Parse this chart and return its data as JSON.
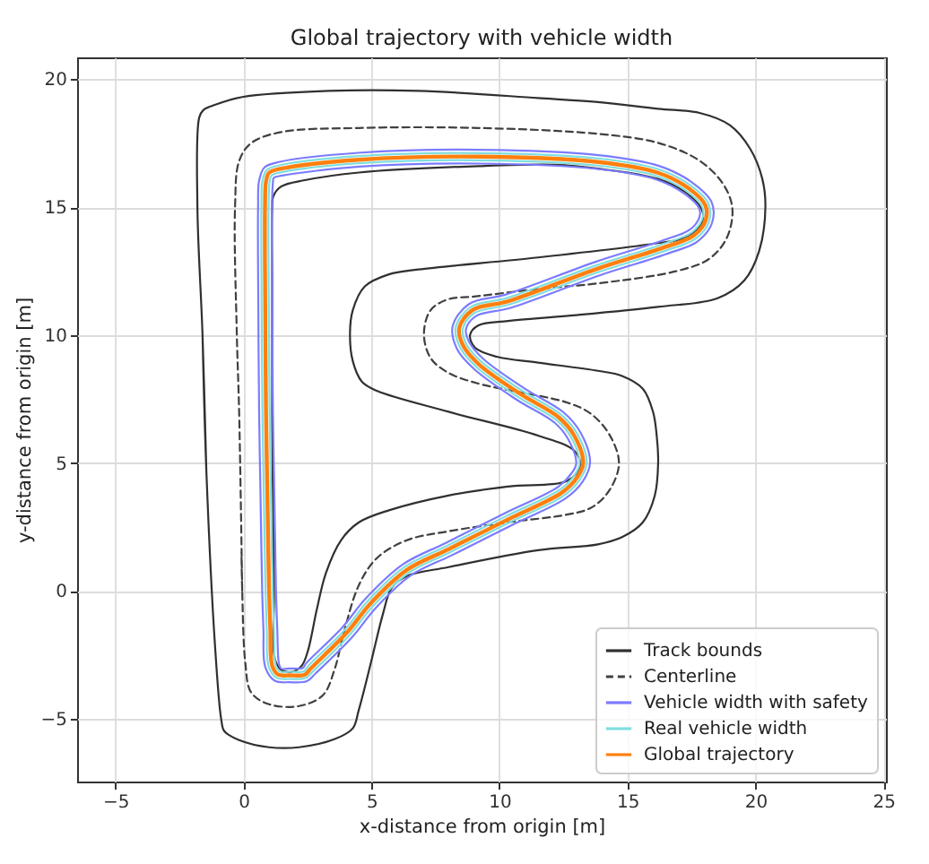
{
  "chart_data": {
    "type": "line",
    "title": "Global trajectory with vehicle width",
    "xlabel": "x-distance from origin [m]",
    "ylabel": "y-distance from origin [m]",
    "xlim": [
      -6.5,
      25.1
    ],
    "ylim": [
      -7.45,
      20.85
    ],
    "xticks": [
      -5,
      0,
      5,
      10,
      15,
      20,
      25
    ],
    "yticks": [
      -5,
      0,
      5,
      10,
      15,
      20
    ],
    "grid": true,
    "legend": "bottom right",
    "series": [
      {
        "name": "Track bounds",
        "color": "#303030",
        "x": [
          -1.45,
          -1.6,
          -1.8,
          -1.73,
          -1.57,
          -1.1,
          -0.05,
          3.34,
          6.84,
          11.51,
          13.85,
          16.19,
          17.82,
          19.0,
          19.8,
          20.27,
          20.39,
          20.15,
          19.57,
          18.52,
          16.19,
          12.68,
          10.34,
          9.18,
          8.85,
          9.05,
          9.9,
          11.51,
          13.85,
          14.79,
          15.6,
          16.0,
          16.15,
          16.2,
          16.07,
          15.6,
          14.79,
          13.85,
          11.51,
          8.01,
          6.38,
          5.79,
          5.44,
          4.98,
          4.5,
          4.27,
          3.57,
          2.17,
          1.0,
          -0.17,
          -0.75,
          -0.87,
          -1.1,
          -1.45,
          -1.6
        ],
        "values": [
          4.67,
          10,
          15.0,
          18.5,
          18.79,
          19.0,
          19.3,
          19.54,
          19.54,
          19.26,
          19.1,
          18.84,
          18.68,
          18.2,
          17.27,
          16.1,
          15.0,
          13.3,
          12.14,
          11.44,
          11.1,
          10.75,
          10.55,
          10.38,
          10.0,
          9.5,
          9.15,
          8.92,
          8.6,
          8.4,
          7.9,
          7.0,
          6.0,
          5.0,
          3.73,
          2.68,
          2.1,
          1.82,
          1.59,
          0.93,
          0.58,
          0.12,
          -0.93,
          -2.8,
          -4.67,
          -5.37,
          -5.79,
          -6.11,
          -6.11,
          -5.83,
          -5.48,
          -5.02,
          -2.33,
          4.67,
          10
        ]
      },
      {
        "color": "#303030",
        "x": [
          1.19,
          1.12,
          1.12,
          1.12,
          1.16,
          1.47,
          2.4,
          4.51,
          9.18,
          12.21,
          13.85,
          16.19,
          17.35,
          17.94,
          17.82,
          17.12,
          16.19,
          11.51,
          6.84,
          5.68,
          4.74,
          4.27,
          4.16,
          4.27,
          4.63,
          5.21,
          8.01,
          11.51,
          12.92,
          13.15,
          12.68,
          10.34,
          8.01,
          5.68,
          4.51,
          3.81,
          3.22,
          2.87,
          2.52,
          2.28,
          1.93,
          1.47,
          1.23,
          1.19,
          1.12
        ],
        "values": [
          0,
          7.0,
          12,
          14.94,
          15.41,
          15.8,
          16.05,
          16.35,
          16.6,
          16.65,
          16.5,
          16.1,
          15.52,
          14.82,
          14.24,
          13.77,
          13.59,
          13.03,
          12.56,
          12.37,
          11.9,
          10.97,
          10.04,
          8.98,
          8.17,
          7.82,
          7.0,
          6.07,
          5.48,
          4.9,
          4.32,
          4.08,
          3.73,
          3.15,
          2.68,
          1.98,
          0.7,
          -0.7,
          -2.33,
          -2.92,
          -3.15,
          -3.08,
          -2.68,
          0,
          7.0
        ]
      },
      {
        "name": "Centerline",
        "color": "#404040",
        "line_style": "dashed",
        "x": [
          -0.05,
          -0.17,
          -0.26,
          -0.33,
          -0.17,
          0.3,
          1.47,
          4.51,
          9.18,
          13.85,
          16.19,
          17.82,
          18.75,
          19.1,
          18.87,
          18.17,
          16.89,
          13.85,
          11.51,
          9.0,
          8.01,
          7.31,
          7.05,
          7.31,
          8.01,
          9.18,
          10.34,
          12.68,
          13.6,
          14.3,
          14.67,
          14.32,
          13.62,
          12.68,
          10.34,
          8.01,
          6.38,
          5.21,
          4.51,
          3.92,
          3.57,
          3.1,
          2.17,
          1.0,
          0.3,
          0.07,
          -0.05,
          -0.08
        ],
        "values": [
          0,
          7.0,
          10,
          15,
          16.8,
          17.5,
          17.93,
          18.09,
          18.09,
          17.86,
          17.51,
          16.81,
          15.88,
          14.94,
          13.77,
          12.96,
          12.49,
          12.02,
          11.8,
          11.5,
          11.4,
          10.97,
          10.04,
          9.1,
          8.52,
          8.1,
          7.85,
          7.35,
          6.9,
          6.1,
          5.0,
          3.97,
          3.27,
          2.99,
          2.68,
          2.33,
          1.98,
          1.28,
          0.23,
          -1.63,
          -3.03,
          -4.08,
          -4.5,
          -4.43,
          -3.97,
          -2.8,
          0,
          1.5
        ]
      },
      {
        "name": "Vehicle width with safety",
        "color": "#7b7bff",
        "x": [
          0.73,
          0.66,
          0.61,
          0.58,
          0.57,
          0.61,
          0.82,
          1.43,
          4.49,
          9.18,
          13.87,
          16.26,
          17.5,
          18.29,
          18.3,
          17.74,
          16.51,
          13.94,
          10.43,
          9.07,
          8.69,
          8.83,
          9.35,
          10.96,
          12.5,
          13.16,
          13.54,
          13.25,
          12.59,
          10.46,
          8.13,
          6.53,
          5.17,
          4.24,
          2.82,
          2.48,
          1.8,
          1.22,
          0.85,
          0.78,
          0.73,
          0.66
        ],
        "values": [
          0,
          3.99,
          7,
          11,
          15,
          16.03,
          16.55,
          16.77,
          17.12,
          17.24,
          17.03,
          16.6,
          15.98,
          15.19,
          14.37,
          13.66,
          13.16,
          12.34,
          11.06,
          10.73,
          10.21,
          9.7,
          9.08,
          7.92,
          6.98,
          6.2,
          5.02,
          4.27,
          3.62,
          2.56,
          1.39,
          0.6,
          -0.66,
          -1.81,
          -3.22,
          -3.53,
          -3.57,
          -3.51,
          -2.97,
          -1.51,
          0,
          3.99
        ]
      },
      {
        "color": "#7b7bff",
        "x": [
          1.27,
          1.2,
          1.15,
          1.12,
          1.11,
          1.15,
          1.18,
          1.51,
          4.53,
          9.18,
          13.83,
          16.12,
          17.2,
          17.81,
          17.8,
          17.44,
          16.33,
          13.76,
          10.25,
          8.81,
          8.17,
          8.35,
          9.01,
          10.66,
          12.17,
          12.68,
          13.0,
          12.81,
          12.31,
          10.22,
          7.89,
          6.23,
          4.79,
          3.84,
          2.44,
          2.32,
          1.8,
          1.48,
          1.39,
          1.32,
          1.27,
          1.2
        ],
        "values": [
          0,
          4.01,
          7,
          11,
          15,
          15.97,
          16.14,
          16.23,
          16.58,
          16.7,
          16.49,
          16.08,
          15.54,
          14.93,
          14.57,
          14.12,
          13.68,
          12.86,
          11.58,
          11.21,
          10.34,
          9.44,
          8.67,
          7.48,
          6.56,
          5.94,
          4.98,
          4.59,
          4.08,
          3.04,
          1.87,
          1.04,
          -0.28,
          -1.45,
          -2.84,
          -3.01,
          -3.03,
          -3.04,
          -2.87,
          -1.49,
          0,
          4.01
        ]
      },
      {
        "name": "Real vehicle width",
        "color": "#80dede",
        "x": [
          0.86,
          0.79,
          0.74,
          0.71,
          0.7,
          0.74,
          0.91,
          1.45,
          4.5,
          9.18,
          13.86,
          16.23,
          17.43,
          18.17,
          18.18,
          17.67,
          16.47,
          13.9,
          10.38,
          9.01,
          8.57,
          8.71,
          9.27,
          10.89,
          12.42,
          13.04,
          13.41,
          13.14,
          12.52,
          10.4,
          8.07,
          6.46,
          5.08,
          4.14,
          2.73,
          2.44,
          1.8,
          1.28,
          0.98,
          0.91,
          0.86,
          0.79
        ],
        "values": [
          0,
          4,
          7,
          11,
          15,
          16.02,
          16.45,
          16.64,
          16.99,
          17.11,
          16.9,
          16.47,
          15.87,
          15.13,
          14.42,
          13.77,
          13.29,
          12.47,
          11.19,
          10.85,
          10.24,
          9.64,
          8.98,
          7.82,
          6.88,
          6.14,
          5.01,
          4.35,
          3.73,
          2.68,
          1.51,
          0.71,
          -0.57,
          -1.73,
          -3.13,
          -3.4,
          -3.44,
          -3.39,
          -2.94,
          -1.51,
          0,
          4
        ]
      },
      {
        "color": "#80dede",
        "x": [
          1.14,
          1.07,
          1.02,
          0.99,
          0.98,
          1.02,
          1.09,
          1.49,
          4.52,
          9.18,
          13.84,
          16.15,
          17.27,
          17.93,
          17.92,
          17.51,
          16.37,
          13.8,
          10.3,
          8.87,
          8.29,
          8.47,
          9.09,
          10.73,
          12.25,
          12.8,
          13.13,
          12.92,
          12.38,
          10.28,
          7.95,
          6.3,
          4.88,
          3.94,
          2.53,
          2.36,
          1.8,
          1.42,
          1.26,
          1.19,
          1.14,
          1.07
        ],
        "values": [
          0,
          4,
          7,
          11,
          15,
          15.98,
          16.23,
          16.36,
          16.71,
          16.83,
          16.62,
          16.21,
          15.65,
          14.99,
          14.52,
          14.01,
          13.55,
          12.73,
          11.45,
          11.09,
          10.3,
          9.5,
          8.76,
          7.58,
          6.66,
          6.0,
          4.99,
          4.51,
          3.97,
          2.93,
          1.76,
          0.94,
          -0.37,
          -1.54,
          -2.93,
          -3.14,
          -3.16,
          -3.15,
          -2.9,
          -1.49,
          0,
          4
        ]
      },
      {
        "name": "Global trajectory",
        "color": "#ff7f0e",
        "x": [
          1.0,
          0.93,
          0.88,
          0.85,
          0.84,
          0.88,
          1.0,
          1.47,
          4.51,
          9.18,
          13.85,
          16.19,
          17.35,
          18.05,
          18.05,
          17.59,
          16.42,
          13.85,
          10.34,
          8.94,
          8.43,
          8.59,
          9.18,
          10.81,
          12.33,
          12.92,
          13.27,
          13.03,
          12.45,
          10.34,
          8.01,
          6.38,
          4.98,
          4.04,
          2.63,
          2.4,
          1.8,
          1.35,
          1.12,
          1.05,
          1.0,
          0.93
        ],
        "values": [
          0,
          4,
          7,
          11,
          15,
          16.0,
          16.34,
          16.5,
          16.85,
          16.97,
          16.76,
          16.34,
          15.76,
          15.06,
          14.47,
          13.89,
          13.42,
          12.6,
          11.32,
          10.97,
          10.27,
          9.57,
          8.87,
          7.7,
          6.77,
          6.07,
          5.0,
          4.43,
          3.85,
          2.8,
          1.63,
          0.82,
          -0.47,
          -1.63,
          -3.03,
          -3.27,
          -3.3,
          -3.27,
          -2.92,
          -1.5,
          0,
          4
        ]
      }
    ]
  }
}
